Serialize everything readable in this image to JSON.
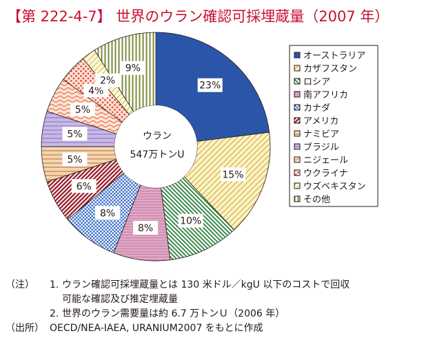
{
  "title": "【第 222-4-7】 世界のウラン確認可採埋蔵量（2007 年）",
  "chart_data": {
    "type": "pie",
    "title": "【第 222-4-7】 世界のウラン確認可採埋蔵量（2007 年）",
    "center_label": [
      "ウラン",
      "547万トンU"
    ],
    "legend_position": "right",
    "categories": [
      "オーストラリア",
      "カザフスタン",
      "ロシア",
      "南アフリカ",
      "カナダ",
      "アメリカ",
      "ナミビア",
      "ブラジル",
      "ニジェール",
      "ウクライナ",
      "ウズベキスタン",
      "その他"
    ],
    "values": [
      23,
      15,
      10,
      8,
      8,
      6,
      5,
      5,
      5,
      4,
      2,
      9
    ],
    "labels": [
      "23%",
      "15%",
      "10%",
      "8%",
      "8%",
      "6%",
      "5%",
      "5%",
      "5%",
      "4%",
      "2%",
      "9%"
    ],
    "colors": [
      "#2b55a8",
      "#f5e6a0",
      "#3b8a4a",
      "#b85a8a",
      "#3a6ec8",
      "#9c2530",
      "#c98a50",
      "#8a70c0",
      "#e8805a",
      "#e04a35",
      "#f0eaa0",
      "#7a8a3a"
    ]
  },
  "notes": {
    "note_head": "（注）",
    "items": [
      {
        "num": "1.",
        "lines": [
          "ウラン確認可採埋蔵量とは 130 米ドル／kgU 以下のコストで回収",
          "可能な確認及び推定埋蔵量"
        ]
      },
      {
        "num": "2.",
        "lines": [
          "世界のウラン需要量は約 6.7 万トンＵ（2006 年）"
        ]
      }
    ],
    "source_head": "（出所）",
    "source": "OECD/NEA-IAEA, URANIUM2007 をもとに作成"
  }
}
